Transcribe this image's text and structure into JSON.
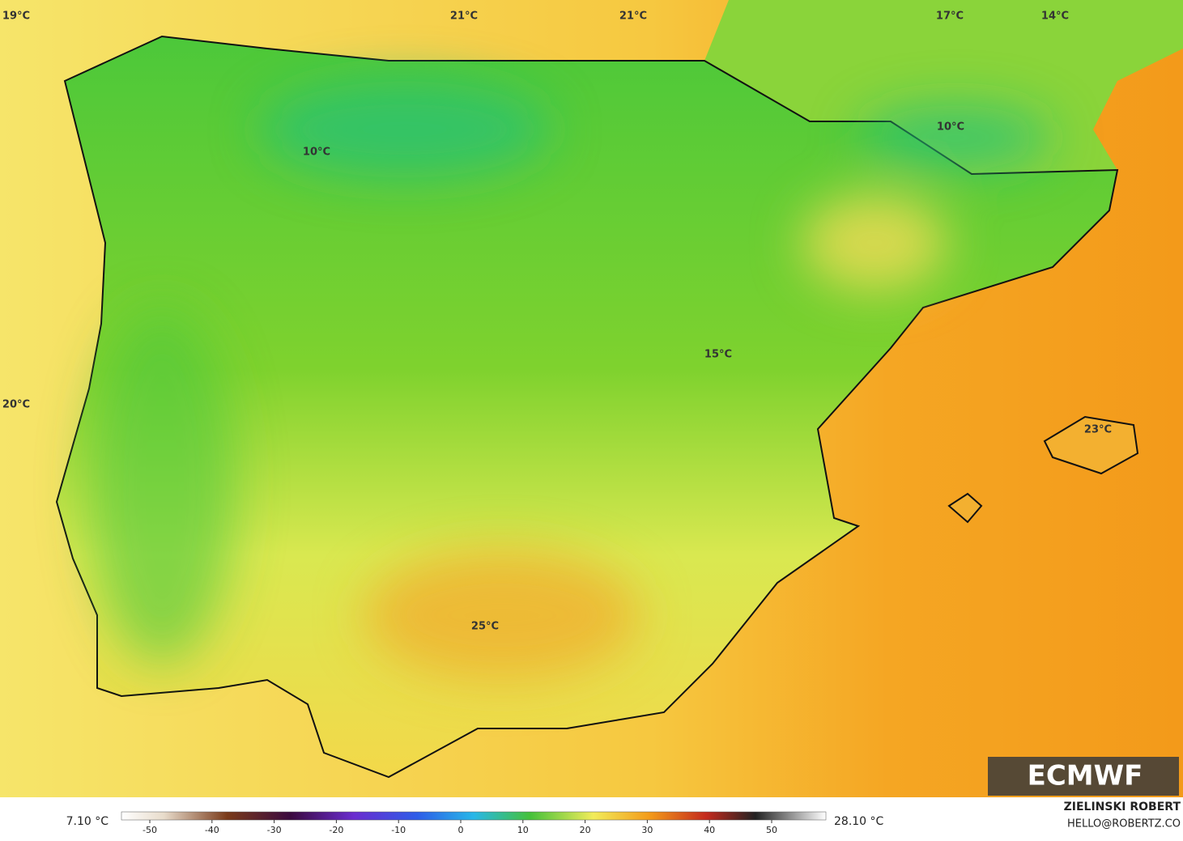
{
  "map": {
    "labels": [
      "19°C",
      "21°C",
      "21°C",
      "17°C",
      "14°C",
      "10°C",
      "10°C",
      "20°C",
      "15°C",
      "23°C",
      "25°C"
    ],
    "logo": "ECMWF",
    "author": "ZIELINSKI ROBERT",
    "contact": "HELLO@ROBERTZ.CO"
  },
  "colorbar": {
    "min_label": "7.10 °C",
    "max_label": "28.10 °C",
    "ticks": [
      -50,
      -40,
      -30,
      -20,
      -10,
      0,
      10,
      20,
      30,
      40,
      50
    ]
  }
}
